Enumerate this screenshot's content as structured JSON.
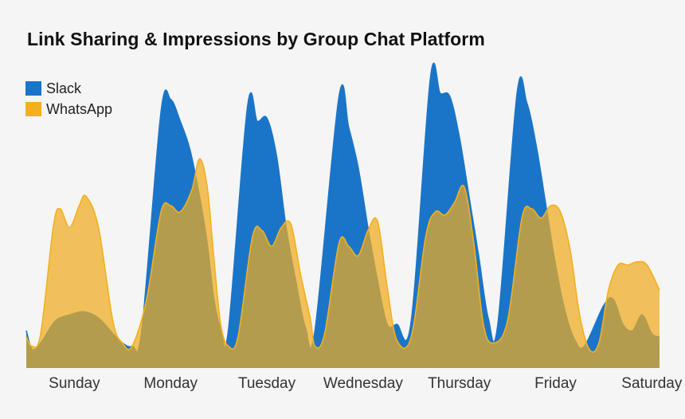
{
  "chart_data": {
    "type": "area",
    "title": "Link Sharing & Impressions by Group Chat Platform",
    "xlabel": "",
    "ylabel": "",
    "ylim": [
      0,
      100
    ],
    "categories": [
      "Sunday",
      "Monday",
      "Tuesday",
      "Wednesday",
      "Thursday",
      "Friday",
      "Saturday"
    ],
    "legend_position": "top-left",
    "grid": false,
    "series": [
      {
        "name": "Slack",
        "color": "#1a75c9",
        "points": [
          [
            0,
            12
          ],
          [
            0.06,
            6
          ],
          [
            0.15,
            8
          ],
          [
            0.3,
            15
          ],
          [
            0.45,
            17
          ],
          [
            0.6,
            18
          ],
          [
            0.75,
            16
          ],
          [
            0.9,
            11
          ],
          [
            1.0,
            8
          ],
          [
            1.1,
            7
          ],
          [
            1.2,
            12
          ],
          [
            1.4,
            82
          ],
          [
            1.5,
            86
          ],
          [
            1.6,
            79
          ],
          [
            1.7,
            70
          ],
          [
            1.8,
            55
          ],
          [
            1.88,
            40
          ],
          [
            1.95,
            22
          ],
          [
            2.02,
            13
          ],
          [
            2.1,
            12
          ],
          [
            2.3,
            84
          ],
          [
            2.4,
            79
          ],
          [
            2.5,
            80
          ],
          [
            2.6,
            68
          ],
          [
            2.7,
            45
          ],
          [
            2.8,
            28
          ],
          [
            2.9,
            13
          ],
          [
            3.0,
            12
          ],
          [
            3.25,
            87
          ],
          [
            3.35,
            77
          ],
          [
            3.45,
            64
          ],
          [
            3.55,
            45
          ],
          [
            3.65,
            28
          ],
          [
            3.75,
            14
          ],
          [
            3.85,
            14
          ],
          [
            4.0,
            15
          ],
          [
            4.2,
            93
          ],
          [
            4.3,
            88
          ],
          [
            4.4,
            87
          ],
          [
            4.5,
            74
          ],
          [
            4.6,
            55
          ],
          [
            4.7,
            36
          ],
          [
            4.8,
            16
          ],
          [
            4.9,
            14
          ],
          [
            5.1,
            88
          ],
          [
            5.2,
            85
          ],
          [
            5.3,
            71
          ],
          [
            5.4,
            52
          ],
          [
            5.5,
            33
          ],
          [
            5.6,
            18
          ],
          [
            5.7,
            9
          ],
          [
            5.8,
            7
          ],
          [
            6.0,
            20
          ],
          [
            6.1,
            22
          ],
          [
            6.2,
            14
          ],
          [
            6.3,
            12
          ],
          [
            6.4,
            17
          ],
          [
            6.5,
            11
          ],
          [
            6.58,
            10
          ]
        ]
      },
      {
        "name": "WhatsApp",
        "color": "#f2b01e",
        "points": [
          [
            0,
            10
          ],
          [
            0.06,
            7
          ],
          [
            0.15,
            11
          ],
          [
            0.28,
            45
          ],
          [
            0.35,
            51
          ],
          [
            0.45,
            45
          ],
          [
            0.55,
            52
          ],
          [
            0.62,
            55
          ],
          [
            0.75,
            45
          ],
          [
            0.9,
            15
          ],
          [
            1.0,
            8
          ],
          [
            1.1,
            7
          ],
          [
            1.25,
            22
          ],
          [
            1.4,
            50
          ],
          [
            1.5,
            52
          ],
          [
            1.6,
            50
          ],
          [
            1.72,
            57
          ],
          [
            1.8,
            67
          ],
          [
            1.88,
            58
          ],
          [
            1.95,
            35
          ],
          [
            2.02,
            14
          ],
          [
            2.1,
            7
          ],
          [
            2.2,
            10
          ],
          [
            2.35,
            42
          ],
          [
            2.45,
            44
          ],
          [
            2.55,
            39
          ],
          [
            2.65,
            45
          ],
          [
            2.75,
            46
          ],
          [
            2.85,
            30
          ],
          [
            2.95,
            16
          ],
          [
            3.0,
            7
          ],
          [
            3.1,
            11
          ],
          [
            3.25,
            40
          ],
          [
            3.35,
            39
          ],
          [
            3.45,
            36
          ],
          [
            3.55,
            44
          ],
          [
            3.65,
            47
          ],
          [
            3.75,
            26
          ],
          [
            3.85,
            9
          ],
          [
            4.0,
            10
          ],
          [
            4.15,
            42
          ],
          [
            4.25,
            50
          ],
          [
            4.35,
            49
          ],
          [
            4.45,
            53
          ],
          [
            4.55,
            58
          ],
          [
            4.65,
            40
          ],
          [
            4.75,
            14
          ],
          [
            4.85,
            8
          ],
          [
            5.0,
            15
          ],
          [
            5.15,
            48
          ],
          [
            5.25,
            51
          ],
          [
            5.35,
            48
          ],
          [
            5.45,
            52
          ],
          [
            5.55,
            50
          ],
          [
            5.65,
            38
          ],
          [
            5.75,
            17
          ],
          [
            5.85,
            6
          ],
          [
            5.95,
            8
          ],
          [
            6.05,
            25
          ],
          [
            6.15,
            33
          ],
          [
            6.25,
            33
          ],
          [
            6.35,
            34
          ],
          [
            6.45,
            33
          ],
          [
            6.58,
            25
          ]
        ]
      }
    ]
  }
}
